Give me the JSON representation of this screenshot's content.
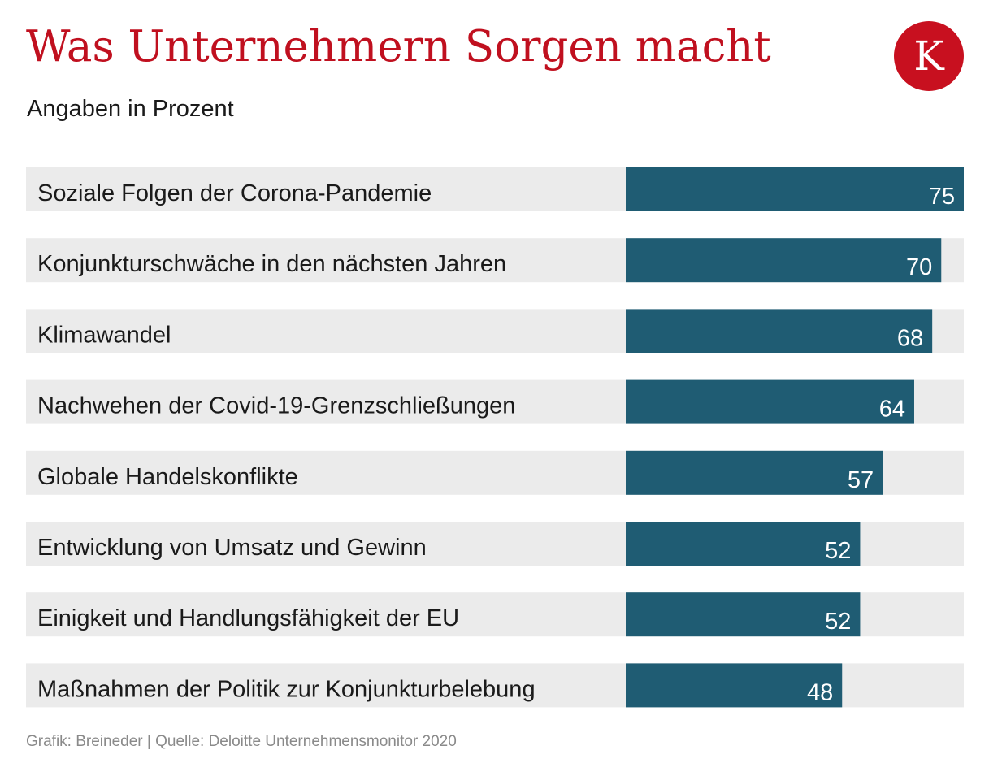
{
  "header": {
    "title": "Was Unternehmern Sorgen macht",
    "subtitle": "Angaben in Prozent"
  },
  "logo": {
    "letter": "K",
    "color": "#c8101f"
  },
  "footer": {
    "source": "Grafik: Breineder | Quelle: Deloitte Unternehmensmonitor 2020"
  },
  "chart_data": {
    "type": "bar",
    "orientation": "horizontal",
    "title": "Was Unternehmern Sorgen macht",
    "subtitle": "Angaben in Prozent",
    "categories": [
      "Soziale Folgen der Corona-Pandemie",
      "Konjunkturschwäche in den nächsten Jahren",
      "Klimawandel",
      "Nachwehen der Covid-19-Grenzschließungen",
      "Globale Handelskonflikte",
      "Entwicklung von Umsatz und Gewinn",
      "Einigkeit und Handlungsfähigkeit der EU",
      "Maßnahmen der Politik zur Konjunkturbelebung"
    ],
    "values": [
      75,
      70,
      68,
      64,
      57,
      52,
      52,
      48
    ],
    "data_labels": [
      "75",
      "70",
      "68",
      "64",
      "57",
      "52",
      "52",
      "48"
    ],
    "xlim": [
      0,
      75
    ],
    "grid": false,
    "legend": "none",
    "colors": {
      "bar": "#1f5c73",
      "row_background": "#ebebeb",
      "title": "#c0101f",
      "label": "#1a1a1a",
      "value_label": "#ffffff"
    }
  }
}
